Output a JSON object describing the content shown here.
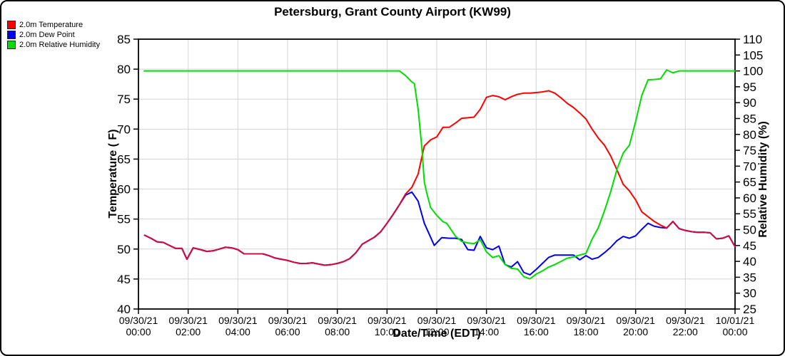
{
  "legend": {
    "items": [
      {
        "label": "2.0m Temperature",
        "color": "#ff0000"
      },
      {
        "label": "2.0m Dew Point",
        "color": "#0000ee"
      },
      {
        "label": "2.0m Relative Humidity",
        "color": "#00dd00"
      }
    ]
  },
  "chart_data": {
    "type": "line",
    "title": "Petersburg, Grant County Airport (KW99)",
    "xlabel": "Date/Time (EDT)",
    "ylabel_left": "Temperature ( F)",
    "ylabel_right": "Relative Humidity (%)",
    "xlim": [
      0,
      24
    ],
    "ylim_left": [
      40,
      85
    ],
    "ylim_right": [
      25,
      110
    ],
    "grid": true,
    "grid_color": "#d4d4d4",
    "axis_color": "#000000",
    "overlap_color": "#c81048",
    "legend_position": "top-left",
    "y_ticks_left": [
      40,
      45,
      50,
      55,
      60,
      65,
      70,
      75,
      80,
      85
    ],
    "y_ticks_right": [
      25,
      30,
      35,
      40,
      45,
      50,
      55,
      60,
      65,
      70,
      75,
      80,
      85,
      90,
      95,
      100,
      105,
      110
    ],
    "x_ticks": [
      {
        "hour": 0,
        "line1": "09/30/21",
        "line2": "00:00"
      },
      {
        "hour": 2,
        "line1": "09/30/21",
        "line2": "02:00"
      },
      {
        "hour": 4,
        "line1": "09/30/21",
        "line2": "04:00"
      },
      {
        "hour": 6,
        "line1": "09/30/21",
        "line2": "06:00"
      },
      {
        "hour": 8,
        "line1": "09/30/21",
        "line2": "08:00"
      },
      {
        "hour": 10,
        "line1": "09/30/21",
        "line2": "10:00"
      },
      {
        "hour": 12,
        "line1": "09/30/21",
        "line2": "12:00"
      },
      {
        "hour": 14,
        "line1": "09/30/21",
        "line2": "14:00"
      },
      {
        "hour": 16,
        "line1": "09/30/21",
        "line2": "16:00"
      },
      {
        "hour": 18,
        "line1": "09/30/21",
        "line2": "18:00"
      },
      {
        "hour": 20,
        "line1": "09/30/21",
        "line2": "20:00"
      },
      {
        "hour": 22,
        "line1": "09/30/21",
        "line2": "22:00"
      },
      {
        "hour": 24,
        "line1": "10/01/21",
        "line2": "00:00"
      }
    ],
    "series": [
      {
        "name": "2.0m Temperature",
        "axis": "left",
        "color": "#ff0000",
        "unit": "F",
        "points": [
          [
            0.25,
            52.3
          ],
          [
            0.5,
            51.8
          ],
          [
            0.75,
            51.2
          ],
          [
            1.0,
            51.1
          ],
          [
            1.25,
            50.6
          ],
          [
            1.5,
            50.1
          ],
          [
            1.75,
            50.1
          ],
          [
            1.95,
            48.3
          ],
          [
            2.2,
            50.2
          ],
          [
            2.5,
            49.9
          ],
          [
            2.75,
            49.6
          ],
          [
            3.0,
            49.7
          ],
          [
            3.25,
            50.0
          ],
          [
            3.5,
            50.3
          ],
          [
            3.75,
            50.2
          ],
          [
            4.0,
            49.9
          ],
          [
            4.25,
            49.2
          ],
          [
            4.5,
            49.2
          ],
          [
            4.75,
            49.2
          ],
          [
            5.0,
            49.2
          ],
          [
            5.25,
            48.9
          ],
          [
            5.5,
            48.5
          ],
          [
            5.75,
            48.3
          ],
          [
            6.0,
            48.1
          ],
          [
            6.25,
            47.8
          ],
          [
            6.5,
            47.6
          ],
          [
            6.75,
            47.6
          ],
          [
            7.0,
            47.7
          ],
          [
            7.25,
            47.5
          ],
          [
            7.5,
            47.3
          ],
          [
            7.75,
            47.4
          ],
          [
            8.0,
            47.6
          ],
          [
            8.25,
            47.9
          ],
          [
            8.5,
            48.4
          ],
          [
            8.75,
            49.4
          ],
          [
            9.0,
            50.8
          ],
          [
            9.25,
            51.4
          ],
          [
            9.5,
            52.0
          ],
          [
            9.75,
            52.9
          ],
          [
            10.0,
            54.3
          ],
          [
            10.25,
            55.8
          ],
          [
            10.5,
            57.4
          ],
          [
            10.75,
            59.2
          ],
          [
            11.0,
            60.3
          ],
          [
            11.25,
            62.5
          ],
          [
            11.5,
            67.2
          ],
          [
            11.75,
            68.2
          ],
          [
            12.0,
            68.7
          ],
          [
            12.25,
            70.3
          ],
          [
            12.5,
            70.3
          ],
          [
            12.75,
            71.0
          ],
          [
            13.0,
            71.8
          ],
          [
            13.25,
            71.9
          ],
          [
            13.5,
            72.0
          ],
          [
            13.75,
            73.3
          ],
          [
            14.0,
            75.3
          ],
          [
            14.25,
            75.6
          ],
          [
            14.5,
            75.4
          ],
          [
            14.75,
            74.9
          ],
          [
            15.0,
            75.4
          ],
          [
            15.25,
            75.8
          ],
          [
            15.5,
            76.0
          ],
          [
            15.75,
            76.0
          ],
          [
            16.0,
            76.1
          ],
          [
            16.25,
            76.2
          ],
          [
            16.5,
            76.4
          ],
          [
            16.75,
            76.0
          ],
          [
            17.0,
            75.2
          ],
          [
            17.25,
            74.3
          ],
          [
            17.5,
            73.6
          ],
          [
            17.75,
            72.7
          ],
          [
            18.0,
            71.7
          ],
          [
            18.25,
            70.0
          ],
          [
            18.5,
            68.5
          ],
          [
            18.75,
            67.3
          ],
          [
            19.0,
            65.5
          ],
          [
            19.25,
            63.2
          ],
          [
            19.5,
            60.8
          ],
          [
            19.75,
            59.7
          ],
          [
            20.0,
            58.2
          ],
          [
            20.25,
            56.2
          ],
          [
            20.5,
            55.4
          ],
          [
            20.75,
            54.6
          ],
          [
            21.0,
            54.0
          ],
          [
            21.25,
            53.5
          ],
          [
            21.5,
            54.6
          ],
          [
            21.75,
            53.4
          ],
          [
            22.0,
            53.1
          ],
          [
            22.25,
            52.9
          ],
          [
            22.5,
            52.8
          ],
          [
            22.75,
            52.8
          ],
          [
            23.0,
            52.7
          ],
          [
            23.25,
            51.7
          ],
          [
            23.5,
            51.8
          ],
          [
            23.75,
            52.2
          ],
          [
            24.0,
            50.4
          ]
        ]
      },
      {
        "name": "2.0m Dew Point",
        "axis": "left",
        "color": "#0000ee",
        "unit": "F",
        "points": [
          [
            0.25,
            52.3
          ],
          [
            0.5,
            51.8
          ],
          [
            0.75,
            51.2
          ],
          [
            1.0,
            51.1
          ],
          [
            1.25,
            50.6
          ],
          [
            1.5,
            50.1
          ],
          [
            1.75,
            50.1
          ],
          [
            1.95,
            48.3
          ],
          [
            2.2,
            50.2
          ],
          [
            2.5,
            49.9
          ],
          [
            2.75,
            49.6
          ],
          [
            3.0,
            49.7
          ],
          [
            3.25,
            50.0
          ],
          [
            3.5,
            50.3
          ],
          [
            3.75,
            50.2
          ],
          [
            4.0,
            49.9
          ],
          [
            4.25,
            49.2
          ],
          [
            4.5,
            49.2
          ],
          [
            4.75,
            49.2
          ],
          [
            5.0,
            49.2
          ],
          [
            5.25,
            48.9
          ],
          [
            5.5,
            48.5
          ],
          [
            5.75,
            48.3
          ],
          [
            6.0,
            48.1
          ],
          [
            6.25,
            47.8
          ],
          [
            6.5,
            47.6
          ],
          [
            6.75,
            47.6
          ],
          [
            7.0,
            47.7
          ],
          [
            7.25,
            47.5
          ],
          [
            7.5,
            47.3
          ],
          [
            7.75,
            47.4
          ],
          [
            8.0,
            47.6
          ],
          [
            8.25,
            47.9
          ],
          [
            8.5,
            48.4
          ],
          [
            8.75,
            49.4
          ],
          [
            9.0,
            50.8
          ],
          [
            9.25,
            51.4
          ],
          [
            9.5,
            52.0
          ],
          [
            9.75,
            52.9
          ],
          [
            10.0,
            54.3
          ],
          [
            10.25,
            55.8
          ],
          [
            10.5,
            57.4
          ],
          [
            10.75,
            59.0
          ],
          [
            11.0,
            59.5
          ],
          [
            11.25,
            58.0
          ],
          [
            11.5,
            54.3
          ],
          [
            11.75,
            52.0
          ],
          [
            11.9,
            50.6
          ],
          [
            12.2,
            51.9
          ],
          [
            12.5,
            51.8
          ],
          [
            12.75,
            51.8
          ],
          [
            13.0,
            51.6
          ],
          [
            13.25,
            49.9
          ],
          [
            13.5,
            49.8
          ],
          [
            13.75,
            52.1
          ],
          [
            14.0,
            50.2
          ],
          [
            14.25,
            49.9
          ],
          [
            14.5,
            50.5
          ],
          [
            14.75,
            47.4
          ],
          [
            15.0,
            47.0
          ],
          [
            15.25,
            47.9
          ],
          [
            15.5,
            46.1
          ],
          [
            15.75,
            45.7
          ],
          [
            16.0,
            46.6
          ],
          [
            16.25,
            47.6
          ],
          [
            16.5,
            48.6
          ],
          [
            16.75,
            49.0
          ],
          [
            17.0,
            49.0
          ],
          [
            17.25,
            49.0
          ],
          [
            17.5,
            49.0
          ],
          [
            17.75,
            48.2
          ],
          [
            18.0,
            48.9
          ],
          [
            18.25,
            48.3
          ],
          [
            18.5,
            48.6
          ],
          [
            18.75,
            49.4
          ],
          [
            19.0,
            50.3
          ],
          [
            19.25,
            51.4
          ],
          [
            19.5,
            52.1
          ],
          [
            19.75,
            51.8
          ],
          [
            20.0,
            52.2
          ],
          [
            20.25,
            53.3
          ],
          [
            20.5,
            54.3
          ],
          [
            20.75,
            53.8
          ],
          [
            21.0,
            53.6
          ],
          [
            21.25,
            53.5
          ],
          [
            21.5,
            54.6
          ],
          [
            21.75,
            53.4
          ],
          [
            22.0,
            53.1
          ],
          [
            22.25,
            52.9
          ],
          [
            22.5,
            52.8
          ],
          [
            22.75,
            52.8
          ],
          [
            23.0,
            52.7
          ],
          [
            23.25,
            51.7
          ],
          [
            23.5,
            51.8
          ],
          [
            23.75,
            52.2
          ],
          [
            24.0,
            50.4
          ]
        ]
      },
      {
        "name": "2.0m Relative Humidity",
        "axis": "right",
        "color": "#00dd00",
        "unit": "%",
        "points": [
          [
            0.23,
            100
          ],
          [
            2,
            100
          ],
          [
            4,
            100
          ],
          [
            6,
            100
          ],
          [
            8,
            100
          ],
          [
            10,
            100
          ],
          [
            10.5,
            100
          ],
          [
            10.75,
            98.5
          ],
          [
            11.0,
            96.5
          ],
          [
            11.1,
            96.0
          ],
          [
            11.25,
            88
          ],
          [
            11.4,
            76
          ],
          [
            11.5,
            65
          ],
          [
            11.6,
            61.5
          ],
          [
            11.75,
            57
          ],
          [
            12.0,
            54.5
          ],
          [
            12.25,
            52.5
          ],
          [
            12.4,
            52.0
          ],
          [
            12.75,
            48
          ],
          [
            13.0,
            46.3
          ],
          [
            13.25,
            45.8
          ],
          [
            13.5,
            45.6
          ],
          [
            13.75,
            46.8
          ],
          [
            14.0,
            43
          ],
          [
            14.25,
            41.2
          ],
          [
            14.5,
            41.8
          ],
          [
            14.75,
            39
          ],
          [
            15.0,
            37.8
          ],
          [
            15.25,
            37.6
          ],
          [
            15.5,
            35.2
          ],
          [
            15.75,
            34.5
          ],
          [
            16.0,
            36.0
          ],
          [
            16.25,
            37.0
          ],
          [
            16.5,
            38.2
          ],
          [
            16.75,
            39.0
          ],
          [
            17.0,
            40.0
          ],
          [
            17.25,
            41.0
          ],
          [
            17.5,
            41.4
          ],
          [
            17.75,
            42.0
          ],
          [
            18.0,
            42.5
          ],
          [
            18.25,
            47.0
          ],
          [
            18.5,
            50.6
          ],
          [
            18.75,
            56.0
          ],
          [
            19.0,
            62.0
          ],
          [
            19.25,
            69.0
          ],
          [
            19.5,
            74.1
          ],
          [
            19.75,
            76.6
          ],
          [
            20.0,
            84.0
          ],
          [
            20.25,
            92.3
          ],
          [
            20.5,
            97.2
          ],
          [
            20.75,
            97.3
          ],
          [
            21.0,
            97.5
          ],
          [
            21.25,
            100.3
          ],
          [
            21.5,
            99.4
          ],
          [
            21.75,
            100
          ],
          [
            22.5,
            100
          ],
          [
            23.25,
            100
          ],
          [
            24.0,
            100
          ]
        ]
      }
    ]
  }
}
